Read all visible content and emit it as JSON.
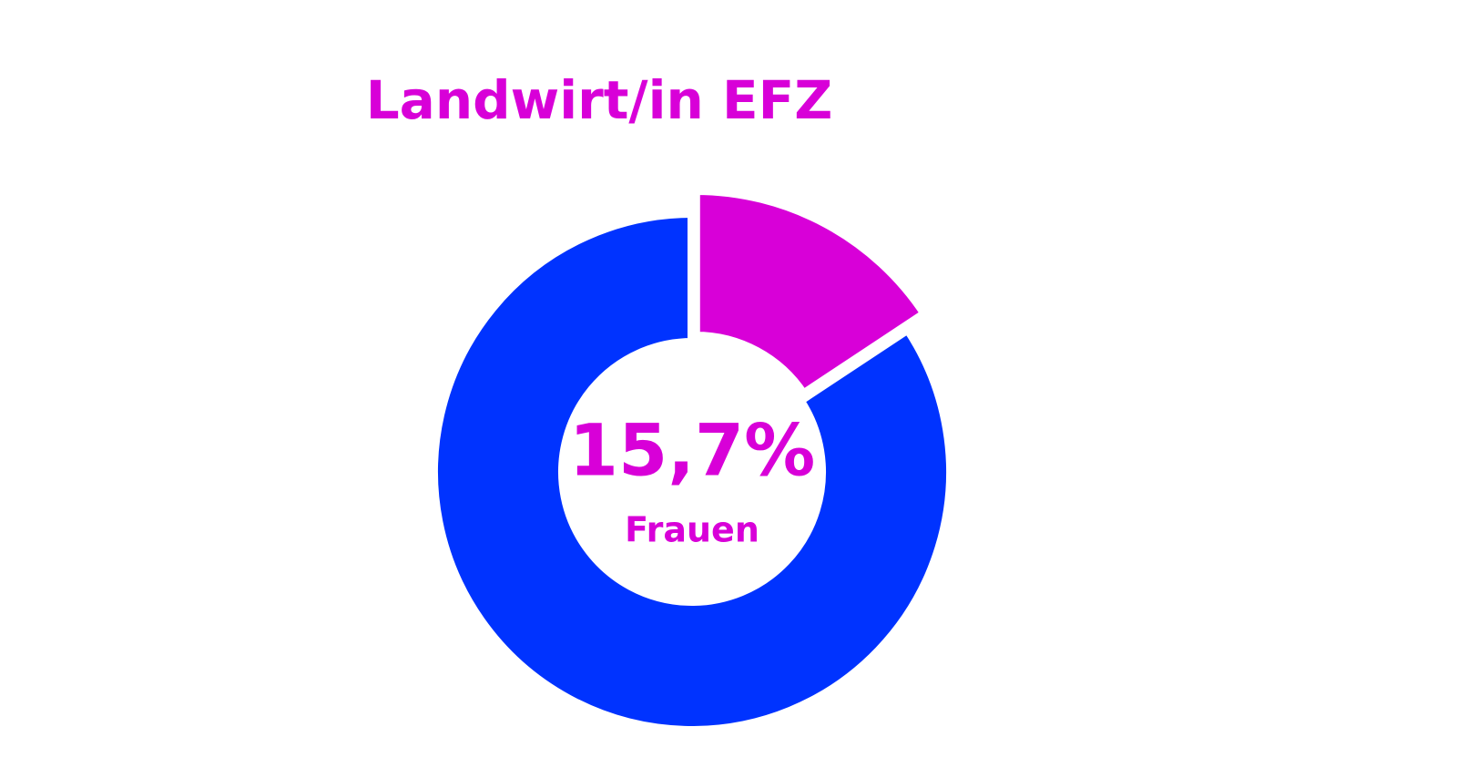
{
  "chart_data": {
    "type": "pie",
    "title": "Landwirt/in EFZ",
    "categories": [
      "Frauen",
      null
    ],
    "values": [
      15.7,
      84.3
    ],
    "value_labels": [
      "15,7%",
      null
    ],
    "colors": [
      "#d800d8",
      "#0033ff"
    ],
    "donut": true
  }
}
